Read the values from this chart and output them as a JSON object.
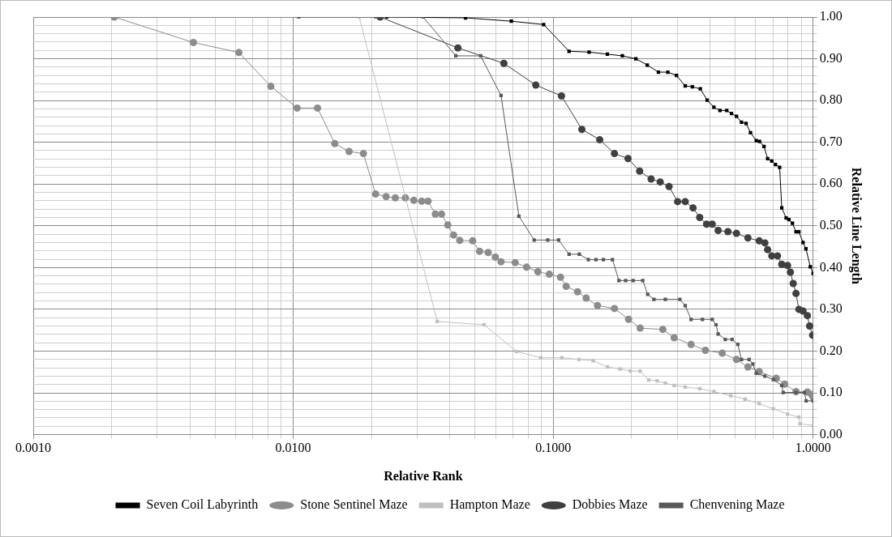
{
  "chart_data": {
    "type": "line",
    "xlabel": "Relative Rank",
    "ylabel": "Relative Line Length",
    "log": "x",
    "grid": true,
    "legend": "bottom",
    "line_style": "solid",
    "xlim": [
      0.001,
      1
    ],
    "xticks": [
      {
        "value": 0.001,
        "label": "0.0010"
      },
      {
        "value": 0.002,
        "label": null
      },
      {
        "value": 0.003,
        "label": null
      },
      {
        "value": 0.004,
        "label": null
      },
      {
        "value": 0.005,
        "label": null
      },
      {
        "value": 0.006,
        "label": null
      },
      {
        "value": 0.007,
        "label": null
      },
      {
        "value": 0.008,
        "label": null
      },
      {
        "value": 0.009,
        "label": null
      },
      {
        "value": 0.01,
        "label": "0.0100"
      },
      {
        "value": 0.02,
        "label": null
      },
      {
        "value": 0.03,
        "label": null
      },
      {
        "value": 0.04,
        "label": null
      },
      {
        "value": 0.05,
        "label": null
      },
      {
        "value": 0.06,
        "label": null
      },
      {
        "value": 0.07,
        "label": null
      },
      {
        "value": 0.08,
        "label": null
      },
      {
        "value": 0.09,
        "label": null
      },
      {
        "value": 0.1,
        "label": "0.1000"
      },
      {
        "value": 0.2,
        "label": null
      },
      {
        "value": 0.3,
        "label": null
      },
      {
        "value": 0.4,
        "label": null
      },
      {
        "value": 0.5,
        "label": null
      },
      {
        "value": 0.6,
        "label": null
      },
      {
        "value": 0.7,
        "label": null
      },
      {
        "value": 0.8,
        "label": null
      },
      {
        "value": 0.9,
        "label": null
      },
      {
        "value": 1,
        "label": "1.0000"
      }
    ],
    "ylim": [
      0,
      1
    ],
    "yticks": [
      {
        "value": 0,
        "label": "0.00"
      },
      {
        "value": 0.02,
        "label": null
      },
      {
        "value": 0.04,
        "label": null
      },
      {
        "value": 0.06,
        "label": null
      },
      {
        "value": 0.08,
        "label": null
      },
      {
        "value": 0.1,
        "label": "0.10"
      },
      {
        "value": 0.12,
        "label": null
      },
      {
        "value": 0.14,
        "label": null
      },
      {
        "value": 0.16,
        "label": null
      },
      {
        "value": 0.18,
        "label": null
      },
      {
        "value": 0.2,
        "label": "0.20"
      },
      {
        "value": 0.22,
        "label": null
      },
      {
        "value": 0.24,
        "label": null
      },
      {
        "value": 0.26,
        "label": null
      },
      {
        "value": 0.28,
        "label": null
      },
      {
        "value": 0.3,
        "label": "0.30"
      },
      {
        "value": 0.32,
        "label": null
      },
      {
        "value": 0.34,
        "label": null
      },
      {
        "value": 0.36,
        "label": null
      },
      {
        "value": 0.38,
        "label": null
      },
      {
        "value": 0.4,
        "label": "0.40"
      },
      {
        "value": 0.42,
        "label": null
      },
      {
        "value": 0.44,
        "label": null
      },
      {
        "value": 0.46,
        "label": null
      },
      {
        "value": 0.48,
        "label": null
      },
      {
        "value": 0.5,
        "label": "0.50"
      },
      {
        "value": 0.52,
        "label": null
      },
      {
        "value": 0.54,
        "label": null
      },
      {
        "value": 0.56,
        "label": null
      },
      {
        "value": 0.58,
        "label": null
      },
      {
        "value": 0.6,
        "label": "0.60"
      },
      {
        "value": 0.62,
        "label": null
      },
      {
        "value": 0.64,
        "label": null
      },
      {
        "value": 0.66,
        "label": null
      },
      {
        "value": 0.68,
        "label": null
      },
      {
        "value": 0.7,
        "label": "0.70"
      },
      {
        "value": 0.72,
        "label": null
      },
      {
        "value": 0.74,
        "label": null
      },
      {
        "value": 0.76,
        "label": null
      },
      {
        "value": 0.78,
        "label": null
      },
      {
        "value": 0.8,
        "label": "0.80"
      },
      {
        "value": 0.82,
        "label": null
      },
      {
        "value": 0.84,
        "label": null
      },
      {
        "value": 0.86,
        "label": null
      },
      {
        "value": 0.88,
        "label": null
      },
      {
        "value": 0.9,
        "label": "0.90"
      },
      {
        "value": 0.92,
        "label": null
      },
      {
        "value": 0.94,
        "label": null
      },
      {
        "value": 0.96,
        "label": null
      },
      {
        "value": 0.98,
        "label": null
      },
      {
        "value": 1,
        "label": "1.00"
      }
    ],
    "series": [
      {
        "name": "Seven Coil Labyrinth",
        "color": "#000000",
        "marker": "square",
        "x": [
          0.0229,
          0.046,
          0.069,
          0.0919,
          0.1151,
          0.1374,
          0.1616,
          0.1845,
          0.208,
          0.23,
          0.254,
          0.276,
          0.298,
          0.322,
          0.343,
          0.368,
          0.391,
          0.415,
          0.438,
          0.465,
          0.485,
          0.507,
          0.53,
          0.552,
          0.574,
          0.604,
          0.622,
          0.647,
          0.668,
          0.693,
          0.716,
          0.743,
          0.757,
          0.787,
          0.807,
          0.832,
          0.859,
          0.881,
          0.914,
          0.938,
          0.975,
          1.0
        ],
        "values": [
          1.0,
          0.998,
          0.99,
          0.982,
          0.918,
          0.916,
          0.911,
          0.907,
          0.9,
          0.885,
          0.868,
          0.868,
          0.86,
          0.835,
          0.833,
          0.828,
          0.801,
          0.784,
          0.776,
          0.776,
          0.769,
          0.762,
          0.748,
          0.745,
          0.723,
          0.704,
          0.702,
          0.69,
          0.661,
          0.655,
          0.647,
          0.64,
          0.543,
          0.519,
          0.515,
          0.506,
          0.486,
          0.486,
          0.46,
          0.445,
          0.402,
          0.386
        ]
      },
      {
        "name": "Stone Sentinel Maze",
        "color": "#8c8c8c",
        "marker": "circle",
        "x": [
          0.00205,
          0.00413,
          0.00618,
          0.0082,
          0.01035,
          0.0124,
          0.01445,
          0.0164,
          0.01862,
          0.02074,
          0.02277,
          0.0247,
          0.027,
          0.0291,
          0.0312,
          0.033,
          0.0352,
          0.0372,
          0.0393,
          0.0414,
          0.0437,
          0.049,
          0.0521,
          0.0562,
          0.0599,
          0.063,
          0.0714,
          0.079,
          0.0873,
          0.0966,
          0.1067,
          0.1122,
          0.1241,
          0.1339,
          0.148,
          0.172,
          0.195,
          0.216,
          0.264,
          0.292,
          0.339,
          0.385,
          0.447,
          0.507,
          0.561,
          0.62,
          0.721,
          0.777,
          0.859,
          0.95,
          0.986,
          1.0
        ],
        "values": [
          1.0,
          0.939,
          0.915,
          0.834,
          0.782,
          0.782,
          0.697,
          0.678,
          0.673,
          0.576,
          0.57,
          0.567,
          0.567,
          0.561,
          0.559,
          0.559,
          0.528,
          0.528,
          0.502,
          0.478,
          0.465,
          0.464,
          0.439,
          0.436,
          0.425,
          0.414,
          0.412,
          0.401,
          0.39,
          0.384,
          0.377,
          0.355,
          0.342,
          0.327,
          0.309,
          0.302,
          0.276,
          0.255,
          0.252,
          0.232,
          0.216,
          0.202,
          0.195,
          0.18,
          0.162,
          0.151,
          0.135,
          0.121,
          0.103,
          0.102,
          0.096,
          0.09
        ]
      },
      {
        "name": "Hampton Maze",
        "color": "#c0c0c0",
        "marker": "square",
        "x": [
          0.01794,
          0.0358,
          0.0542,
          0.0723,
          0.0895,
          0.108,
          0.1257,
          0.1425,
          0.1616,
          0.181,
          0.198,
          0.216,
          0.233,
          0.251,
          0.27,
          0.292,
          0.322,
          0.366,
          0.415,
          0.482,
          0.547,
          0.62,
          0.703,
          0.797,
          0.881,
          0.891,
          1.0
        ],
        "values": [
          1.0,
          0.271,
          0.263,
          0.199,
          0.184,
          0.184,
          0.18,
          0.177,
          0.162,
          0.157,
          0.152,
          0.152,
          0.131,
          0.129,
          0.123,
          0.118,
          0.114,
          0.11,
          0.103,
          0.093,
          0.085,
          0.074,
          0.062,
          0.049,
          0.042,
          0.026,
          0.022
        ]
      },
      {
        "name": "Dobbies Maze",
        "color": "#404040",
        "marker": "circle",
        "x": [
          0.0216,
          0.043,
          0.0646,
          0.0857,
          0.1076,
          0.1289,
          0.151,
          0.172,
          0.194,
          0.215,
          0.238,
          0.258,
          0.279,
          0.301,
          0.322,
          0.345,
          0.366,
          0.389,
          0.409,
          0.431,
          0.47,
          0.507,
          0.561,
          0.62,
          0.652,
          0.668,
          0.693,
          0.729,
          0.757,
          0.797,
          0.817,
          0.838,
          0.859,
          0.881,
          0.914,
          0.95,
          0.969,
          0.995
        ],
        "values": [
          1.0,
          0.926,
          0.889,
          0.837,
          0.811,
          0.731,
          0.706,
          0.673,
          0.661,
          0.631,
          0.612,
          0.605,
          0.594,
          0.558,
          0.558,
          0.543,
          0.52,
          0.504,
          0.504,
          0.489,
          0.486,
          0.482,
          0.471,
          0.464,
          0.459,
          0.443,
          0.428,
          0.428,
          0.408,
          0.405,
          0.389,
          0.362,
          0.338,
          0.3,
          0.296,
          0.285,
          0.26,
          0.238
        ]
      },
      {
        "name": "Chenvening Maze",
        "color": "#595959",
        "marker": "square",
        "x": [
          0.0105,
          0.0208,
          0.0316,
          0.0422,
          0.0526,
          0.063,
          0.0738,
          0.0845,
          0.0953,
          0.1049,
          0.1151,
          0.126,
          0.1365,
          0.146,
          0.156,
          0.169,
          0.179,
          0.19,
          0.203,
          0.221,
          0.231,
          0.244,
          0.27,
          0.307,
          0.322,
          0.339,
          0.375,
          0.409,
          0.423,
          0.431,
          0.459,
          0.488,
          0.513,
          0.53,
          0.567,
          0.586,
          0.604,
          0.652,
          0.703,
          0.757,
          0.767,
          0.859,
          0.925,
          0.94,
          1.0
        ],
        "values": [
          1.0,
          1.0,
          1.0,
          0.907,
          0.907,
          0.812,
          0.523,
          0.466,
          0.466,
          0.466,
          0.432,
          0.432,
          0.419,
          0.419,
          0.419,
          0.419,
          0.369,
          0.369,
          0.369,
          0.369,
          0.336,
          0.324,
          0.324,
          0.324,
          0.309,
          0.276,
          0.276,
          0.276,
          0.263,
          0.241,
          0.228,
          0.228,
          0.216,
          0.18,
          0.18,
          0.169,
          0.147,
          0.14,
          0.132,
          0.118,
          0.101,
          0.101,
          0.101,
          0.081,
          0.081
        ]
      }
    ]
  }
}
